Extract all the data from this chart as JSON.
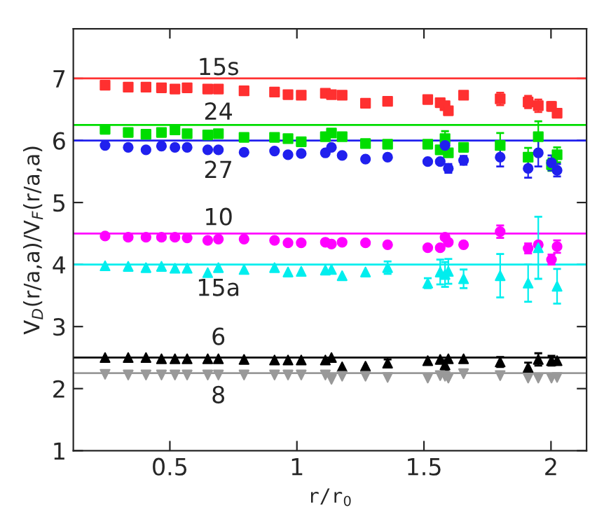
{
  "chart_data": {
    "type": "scatter",
    "xlabel": "r/r$_{0}$",
    "ylabel": "V$_{D}$(r/a,a)/V$_{F}$(r/a,a)",
    "x": [
      0.245,
      0.336,
      0.406,
      0.467,
      0.52,
      0.568,
      0.649,
      0.691,
      0.792,
      0.912,
      0.965,
      1.017,
      1.112,
      1.136,
      1.178,
      1.27,
      1.357,
      1.515,
      1.564,
      1.583,
      1.596,
      1.656,
      1.8,
      1.91,
      1.95,
      2.002,
      2.024
    ],
    "series": [
      {
        "name": "15s",
        "color": "#ff3030",
        "marker": "square",
        "values": [
          6.89,
          6.86,
          6.86,
          6.85,
          6.83,
          6.85,
          6.83,
          6.83,
          6.8,
          6.78,
          6.74,
          6.73,
          6.76,
          6.74,
          6.73,
          6.6,
          6.63,
          6.66,
          6.61,
          6.56,
          6.48,
          6.73,
          6.67,
          6.62,
          6.56,
          6.55,
          6.44
        ],
        "errors": [
          null,
          null,
          null,
          null,
          null,
          null,
          null,
          null,
          null,
          null,
          null,
          null,
          null,
          null,
          null,
          null,
          0.04,
          null,
          null,
          null,
          null,
          null,
          0.1,
          0.1,
          0.1,
          0.07,
          0.05
        ]
      },
      {
        "name": "24",
        "color": "#00dd00",
        "marker": "square",
        "values": [
          6.18,
          6.13,
          6.1,
          6.13,
          6.17,
          6.11,
          6.09,
          6.11,
          6.05,
          6.05,
          6.03,
          5.98,
          6.06,
          6.12,
          6.06,
          5.95,
          5.94,
          5.94,
          5.85,
          6.03,
          5.8,
          5.89,
          5.92,
          5.73,
          6.06,
          5.61,
          5.77
        ],
        "errors": [
          null,
          null,
          null,
          null,
          null,
          null,
          null,
          null,
          null,
          null,
          null,
          null,
          null,
          null,
          null,
          null,
          null,
          null,
          null,
          0.12,
          null,
          null,
          0.2,
          0.15,
          0.25,
          0.1,
          0.12
        ]
      },
      {
        "name": "27",
        "color": "#2020ee",
        "marker": "circle",
        "values": [
          5.92,
          5.89,
          5.85,
          5.91,
          5.89,
          5.89,
          5.85,
          5.85,
          5.81,
          5.83,
          5.77,
          5.79,
          5.8,
          5.89,
          5.76,
          5.7,
          5.73,
          5.66,
          5.66,
          5.92,
          5.55,
          5.68,
          5.73,
          5.55,
          5.8,
          5.64,
          5.52
        ],
        "errors": [
          null,
          null,
          null,
          null,
          null,
          null,
          null,
          null,
          null,
          null,
          null,
          null,
          null,
          null,
          null,
          null,
          null,
          null,
          null,
          0.1,
          0.07,
          0.07,
          0.15,
          0.15,
          0.22,
          0.12,
          0.1
        ]
      },
      {
        "name": "10",
        "color": "#ff00ff",
        "marker": "circle",
        "values": [
          4.46,
          4.44,
          4.44,
          4.44,
          4.44,
          4.43,
          4.39,
          4.41,
          4.41,
          4.39,
          4.35,
          4.35,
          4.36,
          4.33,
          4.36,
          4.35,
          4.32,
          4.27,
          4.27,
          4.44,
          4.36,
          4.32,
          4.53,
          4.26,
          4.32,
          4.08,
          4.29
        ],
        "errors": [
          null,
          null,
          null,
          null,
          null,
          null,
          null,
          null,
          null,
          null,
          null,
          null,
          null,
          null,
          null,
          null,
          null,
          null,
          null,
          null,
          null,
          null,
          0.1,
          0.08,
          null,
          0.08,
          0.1
        ]
      },
      {
        "name": "15a",
        "color": "#00eeee",
        "marker": "triangle",
        "values": [
          3.98,
          3.97,
          3.95,
          3.97,
          3.94,
          3.94,
          3.87,
          3.95,
          3.92,
          3.95,
          3.88,
          3.89,
          3.91,
          3.92,
          3.82,
          3.88,
          3.95,
          3.7,
          3.88,
          3.84,
          3.89,
          3.77,
          3.82,
          3.7,
          4.27,
          null,
          3.65
        ],
        "errors": [
          null,
          null,
          null,
          null,
          null,
          null,
          null,
          null,
          null,
          null,
          null,
          null,
          null,
          null,
          null,
          null,
          0.1,
          0.08,
          0.2,
          0.2,
          0.2,
          0.15,
          0.35,
          0.3,
          0.5,
          null,
          0.28
        ]
      },
      {
        "name": "6",
        "color": "#000000",
        "marker": "triangle",
        "values": [
          2.5,
          2.5,
          2.5,
          2.48,
          2.48,
          2.48,
          2.48,
          2.48,
          2.47,
          2.46,
          2.46,
          2.46,
          2.46,
          2.5,
          2.35,
          2.36,
          2.41,
          2.45,
          2.47,
          2.38,
          2.48,
          2.48,
          2.43,
          2.34,
          2.47,
          2.45,
          2.45
        ],
        "errors": [
          null,
          null,
          null,
          null,
          null,
          null,
          null,
          null,
          null,
          null,
          null,
          null,
          null,
          null,
          null,
          null,
          0.06,
          null,
          null,
          0.08,
          null,
          null,
          0.08,
          0.08,
          0.1,
          0.08,
          null
        ]
      },
      {
        "name": "8",
        "color": "#999999",
        "marker": "triangle_down",
        "values": [
          2.23,
          2.22,
          2.22,
          2.22,
          2.22,
          2.22,
          2.22,
          2.22,
          2.22,
          2.22,
          2.22,
          2.22,
          2.22,
          2.15,
          2.2,
          2.2,
          2.18,
          2.17,
          2.21,
          2.2,
          2.17,
          2.24,
          2.21,
          2.17,
          2.17,
          2.17,
          2.18
        ]
      }
    ],
    "ref_lines": [
      {
        "axis": "y",
        "value": 7,
        "color": "#ff3030"
      },
      {
        "axis": "y",
        "value": 6.25,
        "color": "#00dd00"
      },
      {
        "axis": "y",
        "value": 6,
        "color": "#2020ee"
      },
      {
        "axis": "y",
        "value": 4.5,
        "color": "#ff00ff"
      },
      {
        "axis": "y",
        "value": 4,
        "color": "#00eeee"
      },
      {
        "axis": "y",
        "value": 2.5,
        "color": "#000000"
      },
      {
        "axis": "y",
        "value": 2.25,
        "color": "#999999"
      }
    ],
    "xlim": [
      0.12,
      2.14
    ],
    "ylim": [
      1,
      7.8
    ],
    "xticks": [
      0.5,
      1,
      1.5,
      2
    ],
    "yticks": [
      1,
      2,
      3,
      4,
      5,
      6,
      7
    ],
    "grid": false,
    "legend": false
  }
}
